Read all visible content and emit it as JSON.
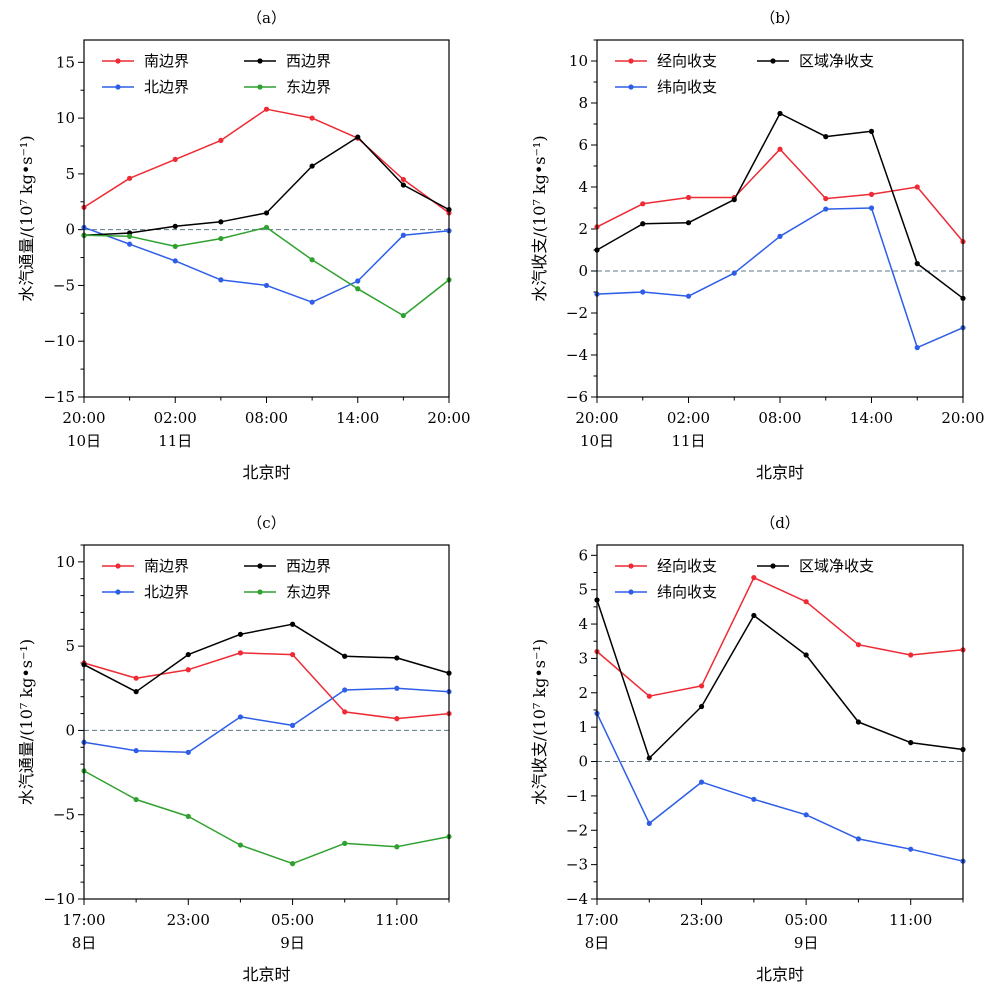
{
  "chart_data": [
    {
      "id": "a",
      "type": "line",
      "title": "（a）",
      "xlabel": "北京时",
      "ylabel": "水汽通量/(10⁷ kg•s⁻¹)",
      "ylim": [
        -15,
        17
      ],
      "yticks": [
        -15,
        -10,
        -5,
        0,
        5,
        10,
        15
      ],
      "y_minor_step": 2.5,
      "x": [
        0,
        1,
        2,
        3,
        4,
        5,
        6,
        7,
        8
      ],
      "xlim": [
        0,
        8
      ],
      "xticks": [
        0,
        2,
        4,
        6,
        8
      ],
      "x_minor": [
        1,
        3,
        5,
        7
      ],
      "xtick_labels": [
        "20:00",
        "02:00",
        "08:00",
        "14:00",
        "20:00"
      ],
      "date_labels": [
        {
          "x": 0,
          "text": "10日"
        },
        {
          "x": 2,
          "text": "11日"
        }
      ],
      "zero_line": true,
      "legend": "top-left",
      "series": [
        {
          "name": "南边界",
          "color": "#ee2b35",
          "values": [
            2.0,
            4.6,
            6.3,
            8.0,
            10.8,
            10.0,
            8.2,
            4.5,
            1.5
          ]
        },
        {
          "name": "北边界",
          "color": "#2e5ee8",
          "values": [
            0.2,
            -1.3,
            -2.8,
            -4.5,
            -5.0,
            -6.5,
            -4.6,
            -0.5,
            -0.1
          ]
        },
        {
          "name": "西边界",
          "color": "#000000",
          "values": [
            -0.5,
            -0.3,
            0.3,
            0.7,
            1.5,
            5.7,
            8.3,
            4.0,
            1.8
          ]
        },
        {
          "name": "东边界",
          "color": "#2fa12f",
          "values": [
            -0.5,
            -0.6,
            -1.5,
            -0.8,
            0.2,
            -2.7,
            -5.3,
            -7.7,
            -4.5
          ]
        }
      ]
    },
    {
      "id": "b",
      "type": "line",
      "title": "（b）",
      "xlabel": "北京时",
      "ylabel": "水汽收支/(10⁷ kg•s⁻¹)",
      "ylim": [
        -6,
        11
      ],
      "yticks": [
        -6,
        -4,
        -2,
        0,
        2,
        4,
        6,
        8,
        10
      ],
      "y_minor_step": 1,
      "x": [
        0,
        1,
        2,
        3,
        4,
        5,
        6,
        7,
        8
      ],
      "xlim": [
        0,
        8
      ],
      "xticks": [
        0,
        2,
        4,
        6,
        8
      ],
      "x_minor": [
        1,
        3,
        5,
        7
      ],
      "xtick_labels": [
        "20:00",
        "02:00",
        "08:00",
        "14:00",
        "20:00"
      ],
      "date_labels": [
        {
          "x": 0,
          "text": "10日"
        },
        {
          "x": 2,
          "text": "11日"
        }
      ],
      "zero_line": true,
      "legend": "top-left",
      "series": [
        {
          "name": "经向收支",
          "color": "#ee2b35",
          "values": [
            2.1,
            3.2,
            3.5,
            3.5,
            5.8,
            3.45,
            3.65,
            4.0,
            1.4
          ]
        },
        {
          "name": "纬向收支",
          "color": "#2e5ee8",
          "values": [
            -1.1,
            -1.0,
            -1.2,
            -0.1,
            1.65,
            2.95,
            3.0,
            -3.65,
            -2.7
          ]
        },
        {
          "name": "区域净收支",
          "color": "#000000",
          "values": [
            1.0,
            2.25,
            2.3,
            3.4,
            7.5,
            6.4,
            6.65,
            0.35,
            -1.3
          ]
        }
      ]
    },
    {
      "id": "c",
      "type": "line",
      "title": "（c）",
      "xlabel": "北京时",
      "ylabel": "水汽通量/(10⁷ kg•s⁻¹)",
      "ylim": [
        -10,
        11
      ],
      "yticks": [
        -10,
        -5,
        0,
        5,
        10
      ],
      "y_minor_step": 1,
      "x": [
        0,
        1,
        2,
        3,
        4,
        5,
        6,
        7
      ],
      "xlim": [
        0,
        7
      ],
      "xticks": [
        0,
        2,
        4,
        6
      ],
      "x_minor": [
        1,
        3,
        5,
        7
      ],
      "xtick_labels": [
        "17:00",
        "23:00",
        "05:00",
        "11:00"
      ],
      "date_labels": [
        {
          "x": 0,
          "text": "8日"
        },
        {
          "x": 4,
          "text": "9日"
        }
      ],
      "zero_line": true,
      "legend": "top-left",
      "series": [
        {
          "name": "南边界",
          "color": "#ee2b35",
          "values": [
            4.0,
            3.1,
            3.6,
            4.6,
            4.5,
            1.1,
            0.7,
            1.0
          ]
        },
        {
          "name": "北边界",
          "color": "#2e5ee8",
          "values": [
            -0.7,
            -1.2,
            -1.3,
            0.8,
            0.3,
            2.4,
            2.5,
            2.3
          ]
        },
        {
          "name": "西边界",
          "color": "#000000",
          "values": [
            3.9,
            2.3,
            4.5,
            5.7,
            6.3,
            4.4,
            4.3,
            3.4
          ]
        },
        {
          "name": "东边界",
          "color": "#2fa12f",
          "values": [
            -2.4,
            -4.1,
            -5.1,
            -6.8,
            -7.9,
            -6.7,
            -6.9,
            -6.3
          ]
        }
      ]
    },
    {
      "id": "d",
      "type": "line",
      "title": "（d）",
      "xlabel": "北京时",
      "ylabel": "水汽收支/(10⁷ kg•s⁻¹)",
      "ylim": [
        -4,
        6.3
      ],
      "yticks": [
        -4,
        -3,
        -2,
        -1,
        0,
        1,
        2,
        3,
        4,
        5,
        6
      ],
      "y_minor_step": 0.5,
      "x": [
        0,
        1,
        2,
        3,
        4,
        5,
        6,
        7
      ],
      "xlim": [
        0,
        7
      ],
      "xticks": [
        0,
        2,
        4,
        6
      ],
      "x_minor": [
        1,
        3,
        5,
        7
      ],
      "xtick_labels": [
        "17:00",
        "23:00",
        "05:00",
        "11:00"
      ],
      "date_labels": [
        {
          "x": 0,
          "text": "8日"
        },
        {
          "x": 4,
          "text": "9日"
        }
      ],
      "zero_line": true,
      "legend": "top-left",
      "series": [
        {
          "name": "经向收支",
          "color": "#ee2b35",
          "values": [
            3.2,
            1.9,
            2.2,
            5.35,
            4.65,
            3.4,
            3.1,
            3.25
          ]
        },
        {
          "name": "纬向收支",
          "color": "#2e5ee8",
          "values": [
            1.4,
            -1.8,
            -0.6,
            -1.1,
            -1.55,
            -2.25,
            -2.55,
            -2.9
          ]
        },
        {
          "name": "区域净收支",
          "color": "#000000",
          "values": [
            4.7,
            0.1,
            1.6,
            4.25,
            3.1,
            1.15,
            0.55,
            0.35
          ]
        }
      ]
    }
  ]
}
